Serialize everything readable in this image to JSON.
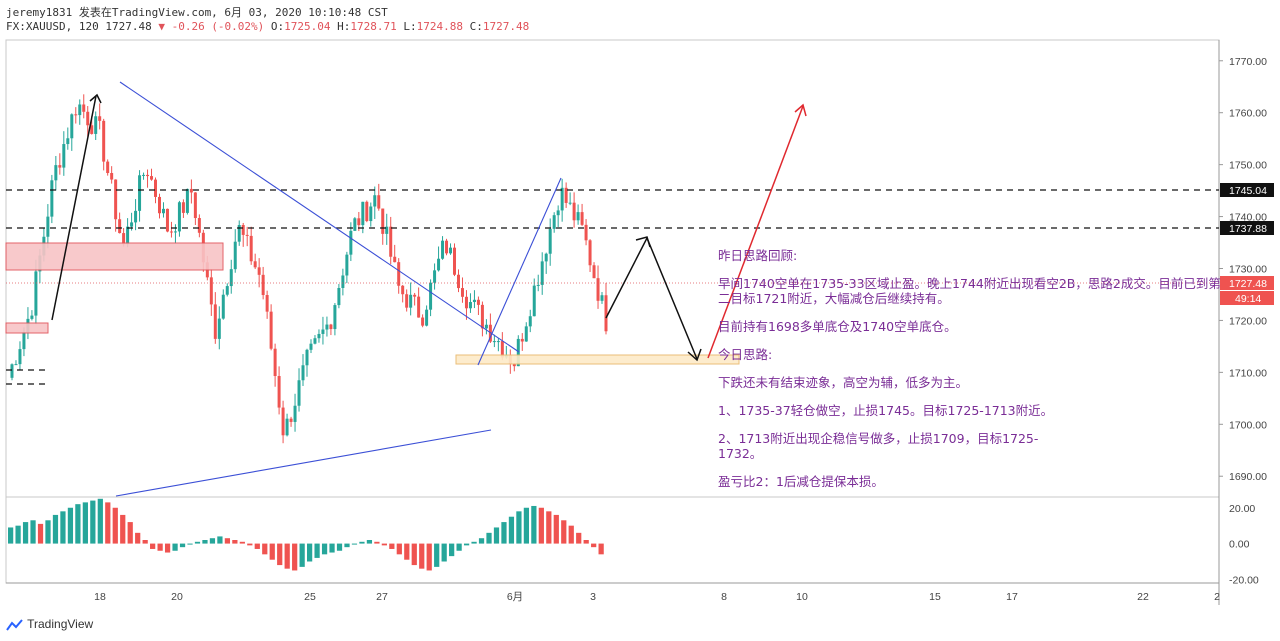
{
  "header": {
    "line1": "jeremy1831 发表在TradingView.com, 6月 03, 2020 10:10:48 CST",
    "symbol": "FX:XAUUSD, 120",
    "last": "1727.48",
    "change": "-0.26 (-0.02%)",
    "o_label": "O:",
    "o": "1725.04",
    "h_label": "H:",
    "h": "1728.71",
    "l_label": "L:",
    "l": "1724.88",
    "c_label": "C:",
    "c": "1727.48"
  },
  "price_axis": {
    "ticks": [
      "1770.00",
      "1760.00",
      "1750.00",
      "1740.00",
      "1730.00",
      "1720.00",
      "1710.00",
      "1700.00",
      "1690.00"
    ],
    "labels": {
      "level_1745": "1745.04",
      "level_1737": "1737.88",
      "last": "1727.48",
      "countdown": "49:14"
    }
  },
  "osc_axis": {
    "ticks": [
      "20.00",
      "0.00",
      "-20.00"
    ]
  },
  "time_axis": {
    "ticks": [
      "18",
      "20",
      "25",
      "27",
      "6月",
      "3",
      "8",
      "10",
      "15",
      "17",
      "22",
      "2"
    ]
  },
  "notes": [
    "昨日思路回顾:",
    "早间1740空单在1735-33区域止盈。晚上1744附近出现看空2B，思路2成交。目前已到第二目标1721附近，大幅减仓后继续持有。",
    "目前持有1698多单底仓及1740空单底仓。",
    "今日思路:",
    "下跌还未有结束迹象，高空为辅，低多为主。",
    "1、1735-37轻仓做空，止损1745。目标1725-1713附近。",
    "2、1713附近出现企稳信号做多，止损1709，目标1725-1732。",
    "盈亏比2：1后减仓提保本损。"
  ],
  "footer": {
    "brand": "TradingView"
  },
  "colors": {
    "up": "#26a69a",
    "down": "#ef5350",
    "trend": "#3b4fd6",
    "note": "#7a2d96"
  },
  "chart_data": {
    "type": "candlestick",
    "symbol": "FX:XAUUSD",
    "interval": "120",
    "ylim": [
      1686,
      1774
    ],
    "x_ticks": [
      "18",
      "20",
      "25",
      "27",
      "6月",
      "3",
      "8",
      "10",
      "15",
      "17",
      "22",
      "2"
    ],
    "horizontal_levels": [
      1745.04,
      1737.88
    ],
    "last_price": 1727.48,
    "key_path": [
      1709,
      1722,
      1748,
      1762,
      1756,
      1734,
      1750,
      1737,
      1745,
      1718,
      1738,
      1728,
      1698,
      1712,
      1720,
      1738,
      1744,
      1726,
      1721,
      1735,
      1724,
      1718,
      1712,
      1728,
      1745,
      1737,
      1720
    ],
    "oscillator": {
      "type": "histogram",
      "ylim": [
        -22,
        26
      ],
      "values": [
        9,
        10,
        12,
        13,
        11,
        13,
        16,
        18,
        20,
        22,
        23,
        24,
        25,
        23,
        20,
        16,
        12,
        6,
        2,
        -3,
        -4,
        -5,
        -4,
        -2,
        0,
        1,
        2,
        3,
        4,
        3,
        2,
        1,
        -1,
        -3,
        -6,
        -9,
        -12,
        -14,
        -15,
        -13,
        -10,
        -8,
        -6,
        -5,
        -4,
        -2,
        0,
        1,
        2,
        1,
        -1,
        -3,
        -6,
        -9,
        -12,
        -14,
        -15,
        -13,
        -10,
        -7,
        -4,
        -1,
        1,
        3,
        6,
        9,
        12,
        15,
        18,
        20,
        21,
        20,
        18,
        16,
        13,
        10,
        6,
        2,
        -2,
        -6
      ]
    }
  }
}
